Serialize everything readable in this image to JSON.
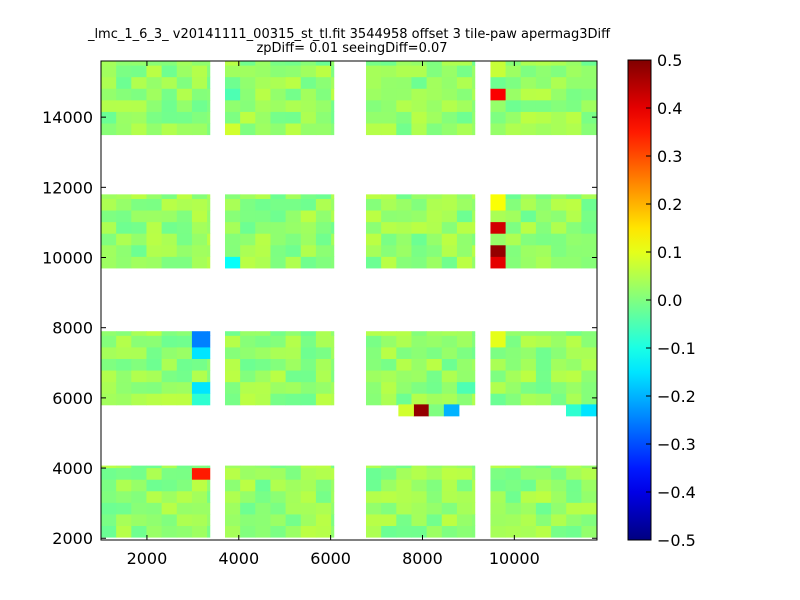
{
  "chart_data": {
    "type": "heatmap",
    "title_line1": "_lmc_1_6_3_ v20141111_00315_st_tl.fit 3544958 offset 3 tile-paw apermag3Diff",
    "title_line2": "zpDiff= 0.01 seeingDiff=0.07",
    "xlabel": "",
    "ylabel": "",
    "xlim": [
      1000,
      11800
    ],
    "ylim": [
      1950,
      15600
    ],
    "x_ticks": [
      2000,
      4000,
      6000,
      8000,
      10000
    ],
    "y_ticks": [
      2000,
      4000,
      6000,
      8000,
      10000,
      12000,
      14000
    ],
    "colorbar": {
      "vmin": -0.5,
      "vmax": 0.5,
      "colormap": "jet",
      "ticks": [
        0.5,
        0.4,
        0.3,
        0.2,
        0.1,
        0.0,
        -0.1,
        -0.2,
        -0.3,
        -0.4,
        -0.5
      ],
      "tick_labels": [
        "0.5",
        "0.4",
        "0.3",
        "0.2",
        "0.1",
        "0.0",
        "−0.1",
        "−0.2",
        "−0.3",
        "−0.4",
        "−0.5"
      ]
    },
    "cell_size": [
      330,
      330
    ],
    "grid": false,
    "detector_columns": [
      {
        "x_start": 1000,
        "x_end": 3370
      },
      {
        "x_start": 3700,
        "x_end": 6070
      },
      {
        "x_start": 6770,
        "x_end": 9140
      },
      {
        "x_start": 9480,
        "x_end": 11800
      }
    ],
    "detector_rows": [
      {
        "y_start": 2030,
        "y_end": 4070
      },
      {
        "y_start": 5800,
        "y_end": 7900
      },
      {
        "y_start": 9700,
        "y_end": 11800
      },
      {
        "y_start": 13500,
        "y_end": 15600
      }
    ],
    "base_value": 0.02,
    "special_cells": [
      {
        "x": 3190,
        "y": 3850,
        "value": 0.35
      },
      {
        "x": 3190,
        "y": 7750,
        "value": -0.25
      },
      {
        "x": 3190,
        "y": 7420,
        "value": -0.15
      },
      {
        "x": 3190,
        "y": 6300,
        "value": -0.15
      },
      {
        "x": 3190,
        "y": 5970,
        "value": -0.08
      },
      {
        "x": 7970,
        "y": 5650,
        "value": 0.48
      },
      {
        "x": 7640,
        "y": 5650,
        "value": 0.08
      },
      {
        "x": 8300,
        "y": 5650,
        "value": 0.0
      },
      {
        "x": 8630,
        "y": 5650,
        "value": -0.2
      },
      {
        "x": 8960,
        "y": 6300,
        "value": -0.05
      },
      {
        "x": 9640,
        "y": 7750,
        "value": 0.1
      },
      {
        "x": 11290,
        "y": 5650,
        "value": -0.08
      },
      {
        "x": 11620,
        "y": 5650,
        "value": -0.15
      },
      {
        "x": 9640,
        "y": 11620,
        "value": 0.12
      },
      {
        "x": 9640,
        "y": 10960,
        "value": 0.42
      },
      {
        "x": 9640,
        "y": 10300,
        "value": 0.48
      },
      {
        "x": 9640,
        "y": 9880,
        "value": 0.4
      },
      {
        "x": 9640,
        "y": 15420,
        "value": 0.07
      },
      {
        "x": 9640,
        "y": 14560,
        "value": 0.38
      },
      {
        "x": 3850,
        "y": 9880,
        "value": -0.12
      },
      {
        "x": 3850,
        "y": 13810,
        "value": 0.08
      },
      {
        "x": 3850,
        "y": 14560,
        "value": -0.05
      }
    ],
    "missing_cells": [
      {
        "x": 3190,
        "y": 3520
      },
      {
        "x": 3190,
        "y": 6630
      },
      {
        "x": 8960,
        "y": 7420
      },
      {
        "x": 8960,
        "y": 7750
      },
      {
        "x": 9640,
        "y": 13810
      },
      {
        "x": 9640,
        "y": 14150
      }
    ]
  }
}
